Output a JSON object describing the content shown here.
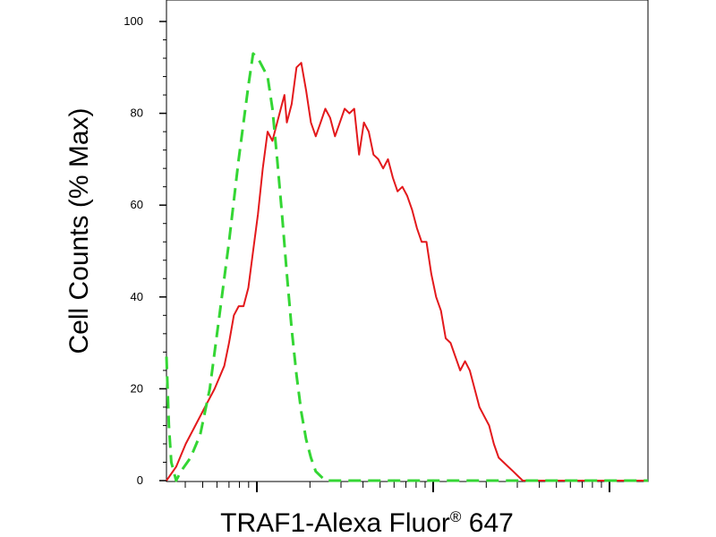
{
  "chart_data": {
    "type": "line",
    "title": "",
    "xlabel": "TRAF1-Alexa Fluor",
    "xlabel_mark": "®",
    "xlabel_suffix": " 647",
    "ylabel": "Cell Counts (% Max)",
    "x_scale": "log",
    "x_tick_labels": "none",
    "ylim": [
      0,
      100
    ],
    "y_ticks": [
      0,
      20,
      40,
      60,
      80,
      100
    ],
    "y_tick_labels": [
      "0",
      "20",
      "40",
      "60",
      "80",
      "100"
    ],
    "grid": false,
    "legend": "none",
    "series": [
      {
        "color": "#e3191c",
        "style": "solid",
        "points": [
          [
            0.0,
            0
          ],
          [
            0.02,
            3
          ],
          [
            0.04,
            8
          ],
          [
            0.06,
            12
          ],
          [
            0.08,
            16
          ],
          [
            0.1,
            20
          ],
          [
            0.12,
            25
          ],
          [
            0.13,
            30
          ],
          [
            0.14,
            36
          ],
          [
            0.15,
            38
          ],
          [
            0.16,
            38
          ],
          [
            0.17,
            42
          ],
          [
            0.18,
            50
          ],
          [
            0.19,
            58
          ],
          [
            0.2,
            68
          ],
          [
            0.21,
            76
          ],
          [
            0.22,
            74
          ],
          [
            0.23,
            78
          ],
          [
            0.24,
            82
          ],
          [
            0.245,
            84
          ],
          [
            0.25,
            78
          ],
          [
            0.26,
            82
          ],
          [
            0.27,
            90
          ],
          [
            0.28,
            91
          ],
          [
            0.29,
            85
          ],
          [
            0.3,
            78
          ],
          [
            0.31,
            75
          ],
          [
            0.32,
            78
          ],
          [
            0.33,
            81
          ],
          [
            0.34,
            79
          ],
          [
            0.35,
            75
          ],
          [
            0.36,
            78
          ],
          [
            0.37,
            81
          ],
          [
            0.38,
            80
          ],
          [
            0.39,
            81
          ],
          [
            0.4,
            71
          ],
          [
            0.41,
            78
          ],
          [
            0.42,
            76
          ],
          [
            0.43,
            71
          ],
          [
            0.44,
            70
          ],
          [
            0.45,
            68
          ],
          [
            0.46,
            70
          ],
          [
            0.47,
            66
          ],
          [
            0.48,
            63
          ],
          [
            0.49,
            64
          ],
          [
            0.5,
            62
          ],
          [
            0.51,
            59
          ],
          [
            0.52,
            55
          ],
          [
            0.53,
            52
          ],
          [
            0.54,
            52
          ],
          [
            0.55,
            45
          ],
          [
            0.56,
            40
          ],
          [
            0.57,
            37
          ],
          [
            0.58,
            31
          ],
          [
            0.59,
            30
          ],
          [
            0.6,
            27
          ],
          [
            0.61,
            24
          ],
          [
            0.62,
            26
          ],
          [
            0.63,
            24
          ],
          [
            0.64,
            20
          ],
          [
            0.65,
            16
          ],
          [
            0.66,
            14
          ],
          [
            0.67,
            12
          ],
          [
            0.68,
            8
          ],
          [
            0.69,
            5
          ],
          [
            0.7,
            4
          ],
          [
            0.71,
            3
          ],
          [
            0.72,
            2
          ],
          [
            0.73,
            1
          ],
          [
            0.74,
            0
          ],
          [
            0.8,
            0
          ],
          [
            1.0,
            0
          ]
        ]
      },
      {
        "color": "#34d634",
        "style": "dashed",
        "points": [
          [
            0.0,
            27
          ],
          [
            0.005,
            12
          ],
          [
            0.01,
            4
          ],
          [
            0.02,
            0
          ],
          [
            0.03,
            2
          ],
          [
            0.05,
            5
          ],
          [
            0.07,
            10
          ],
          [
            0.09,
            20
          ],
          [
            0.11,
            36
          ],
          [
            0.13,
            52
          ],
          [
            0.15,
            70
          ],
          [
            0.17,
            86
          ],
          [
            0.18,
            93
          ],
          [
            0.19,
            92
          ],
          [
            0.2,
            90
          ],
          [
            0.21,
            88
          ],
          [
            0.22,
            81
          ],
          [
            0.23,
            70
          ],
          [
            0.24,
            58
          ],
          [
            0.25,
            45
          ],
          [
            0.26,
            33
          ],
          [
            0.27,
            23
          ],
          [
            0.28,
            15
          ],
          [
            0.29,
            9
          ],
          [
            0.3,
            5
          ],
          [
            0.31,
            2
          ],
          [
            0.32,
            1
          ],
          [
            0.33,
            0
          ],
          [
            1.0,
            0
          ]
        ]
      }
    ]
  }
}
